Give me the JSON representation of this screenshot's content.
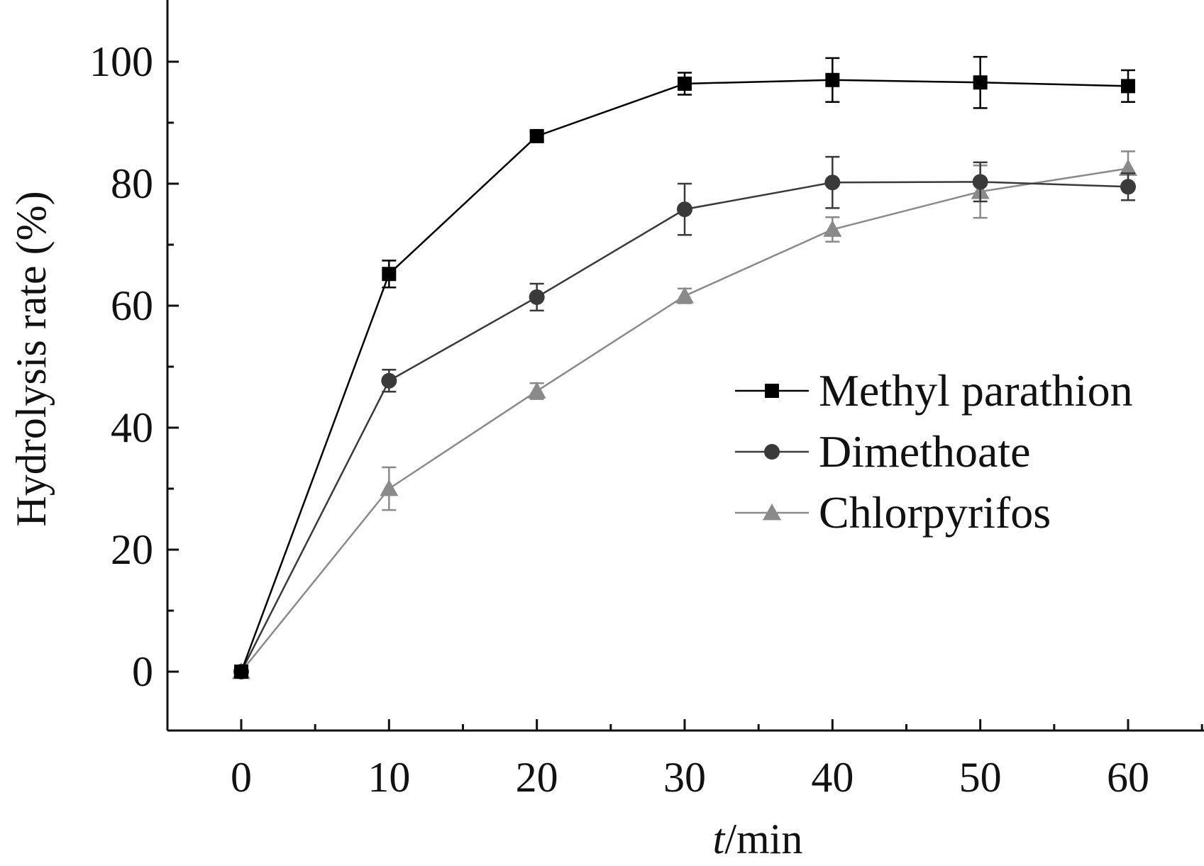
{
  "chart_data": {
    "type": "line",
    "x": [
      0,
      10,
      20,
      30,
      40,
      50,
      60
    ],
    "xlabel_italic": "t",
    "xlabel_rest": "/min",
    "ylabel": "Hydrolysis rate (%)",
    "xlim": [
      -5,
      65
    ],
    "ylim": [
      -10,
      110
    ],
    "xticks": [
      "0",
      "10",
      "20",
      "30",
      "40",
      "50",
      "60"
    ],
    "yticks": [
      "0",
      "20",
      "40",
      "60",
      "80",
      "100"
    ],
    "grid": false,
    "legend_position": "right",
    "series": [
      {
        "name": "Methyl parathion",
        "marker": "square",
        "color": "#000000",
        "values": [
          0,
          65.2,
          87.8,
          96.4,
          97.0,
          96.6,
          96.0
        ],
        "errors": [
          0,
          2.2,
          0.8,
          1.8,
          3.6,
          4.2,
          2.6
        ]
      },
      {
        "name": "Dimethoate",
        "marker": "circle",
        "color": "#3a3a3a",
        "values": [
          0,
          47.7,
          61.4,
          75.8,
          80.2,
          80.3,
          79.5
        ],
        "errors": [
          0,
          1.8,
          2.2,
          4.2,
          4.2,
          3.2,
          2.2
        ]
      },
      {
        "name": "Chlorpyrifos",
        "marker": "triangle",
        "color": "#8a8a8a",
        "values": [
          0,
          30.0,
          46.0,
          61.6,
          72.5,
          78.7,
          82.5
        ],
        "errors": [
          0,
          3.5,
          1.3,
          1.2,
          2.0,
          4.3,
          2.8
        ]
      }
    ]
  }
}
